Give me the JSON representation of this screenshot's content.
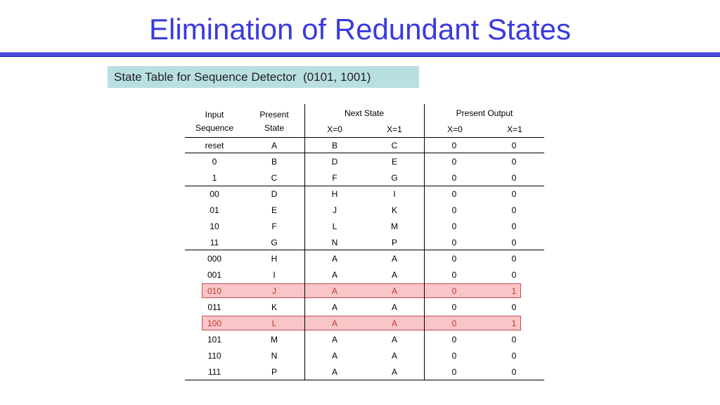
{
  "title": "Elimination of Redundant States",
  "subtitle": "State Table for Sequence Detector  (0101, 1001)",
  "table": {
    "headers": {
      "input_line1": "Input",
      "input_line2": "Sequence",
      "present_line1": "Present",
      "present_line2": "State",
      "next_state": "Next State",
      "present_output": "Present Output",
      "x0": "X=0",
      "x1": "X=1"
    },
    "rows": [
      [
        "reset",
        "A",
        "B",
        "C",
        "0",
        "0"
      ],
      [
        "0",
        "B",
        "D",
        "E",
        "0",
        "0"
      ],
      [
        "1",
        "C",
        "F",
        "G",
        "0",
        "0"
      ],
      [
        "00",
        "D",
        "H",
        "I",
        "0",
        "0"
      ],
      [
        "01",
        "E",
        "J",
        "K",
        "0",
        "0"
      ],
      [
        "10",
        "F",
        "L",
        "M",
        "0",
        "0"
      ],
      [
        "11",
        "G",
        "N",
        "P",
        "0",
        "0"
      ],
      [
        "000",
        "H",
        "A",
        "A",
        "0",
        "0"
      ],
      [
        "001",
        "I",
        "A",
        "A",
        "0",
        "0"
      ],
      [
        "010",
        "J",
        "A",
        "A",
        "0",
        "1"
      ],
      [
        "011",
        "K",
        "A",
        "A",
        "0",
        "0"
      ],
      [
        "100",
        "L",
        "A",
        "A",
        "0",
        "1"
      ],
      [
        "101",
        "M",
        "A",
        "A",
        "0",
        "0"
      ],
      [
        "110",
        "N",
        "A",
        "A",
        "0",
        "0"
      ],
      [
        "111",
        "P",
        "A",
        "A",
        "0",
        "0"
      ]
    ],
    "highlighted_rows": [
      9,
      11
    ],
    "highlight_color": "#f9c5c7",
    "highlight_text_color": "#c0392b"
  }
}
